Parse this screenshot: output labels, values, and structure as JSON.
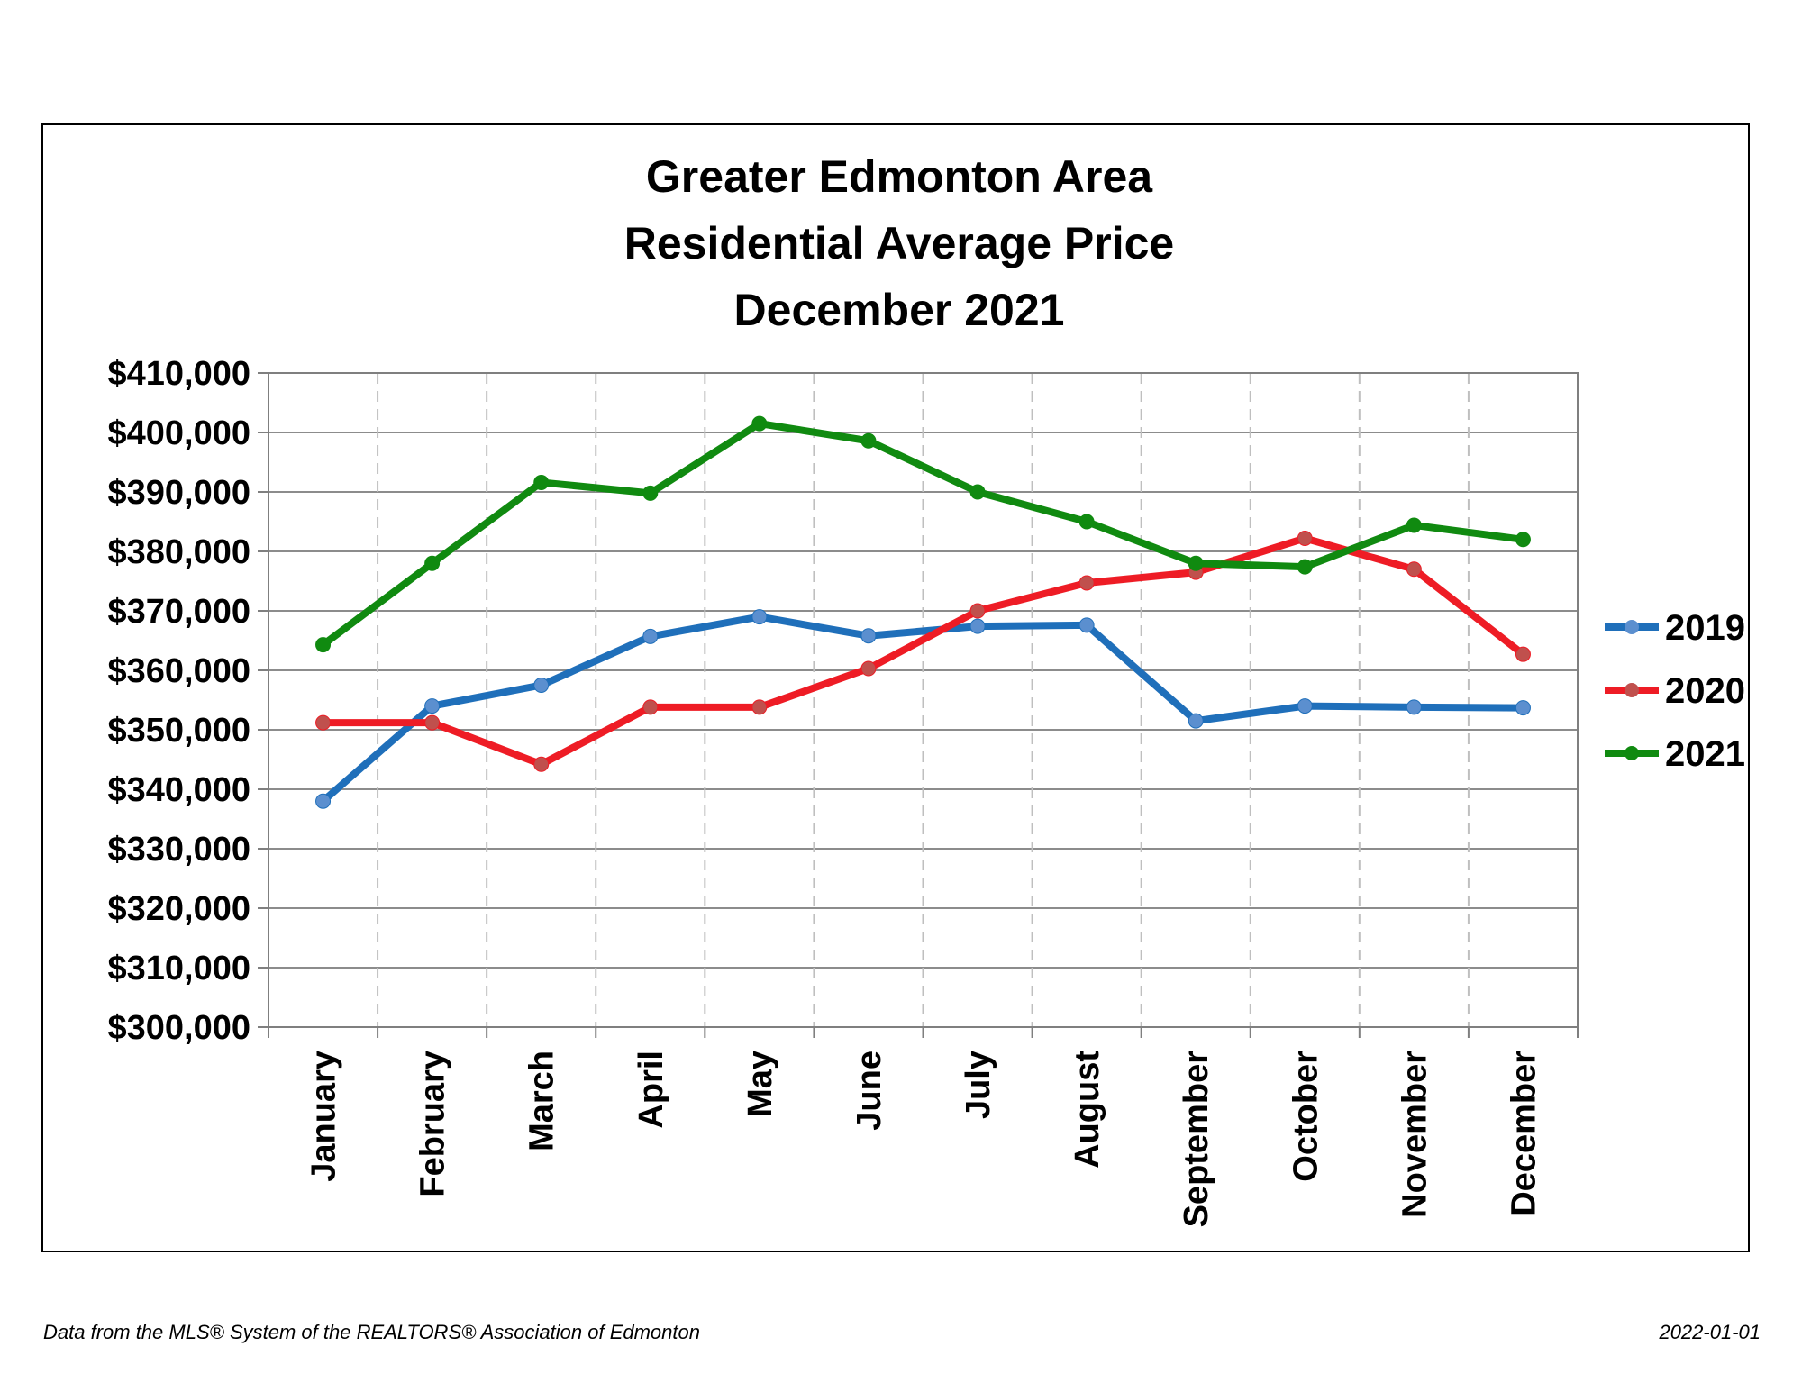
{
  "title_lines": [
    "Greater Edmonton Area",
    "Residential Average Price",
    "December 2021"
  ],
  "footer": {
    "source": "Data from the MLS® System of the REALTORS® Association of Edmonton",
    "date": "2022-01-01"
  },
  "chart_data": {
    "type": "line",
    "title": "Greater Edmonton Area Residential Average Price December 2021",
    "xlabel": "",
    "ylabel": "",
    "categories": [
      "January",
      "February",
      "March",
      "April",
      "May",
      "June",
      "July",
      "August",
      "September",
      "October",
      "November",
      "December"
    ],
    "ylim": [
      300000,
      410000
    ],
    "yticks": [
      300000,
      310000,
      320000,
      330000,
      340000,
      350000,
      360000,
      370000,
      380000,
      390000,
      400000,
      410000
    ],
    "ytick_labels": [
      "$300,000",
      "$310,000",
      "$320,000",
      "$330,000",
      "$340,000",
      "$350,000",
      "$360,000",
      "$370,000",
      "$380,000",
      "$390,000",
      "$400,000",
      "$410,000"
    ],
    "grid": {
      "horizontal": "solid",
      "vertical": "dashed"
    },
    "legend_position": "right",
    "series": [
      {
        "name": "2019",
        "color": "#1f6fba",
        "marker_color": "#5b8fcf",
        "values": [
          338000,
          354000,
          357500,
          365700,
          369000,
          365800,
          367400,
          367600,
          351500,
          354000,
          353800,
          353700
        ]
      },
      {
        "name": "2020",
        "color": "#ee1c25",
        "marker_color": "#c0504d",
        "values": [
          351200,
          351200,
          344200,
          353800,
          353800,
          360300,
          370000,
          374700,
          376500,
          382200,
          377000,
          362700
        ]
      },
      {
        "name": "2021",
        "color": "#108a10",
        "marker_color": "#108a10",
        "values": [
          364300,
          378000,
          391600,
          389800,
          401500,
          398600,
          390000,
          385000,
          378000,
          377400,
          384400,
          382000
        ]
      }
    ]
  }
}
